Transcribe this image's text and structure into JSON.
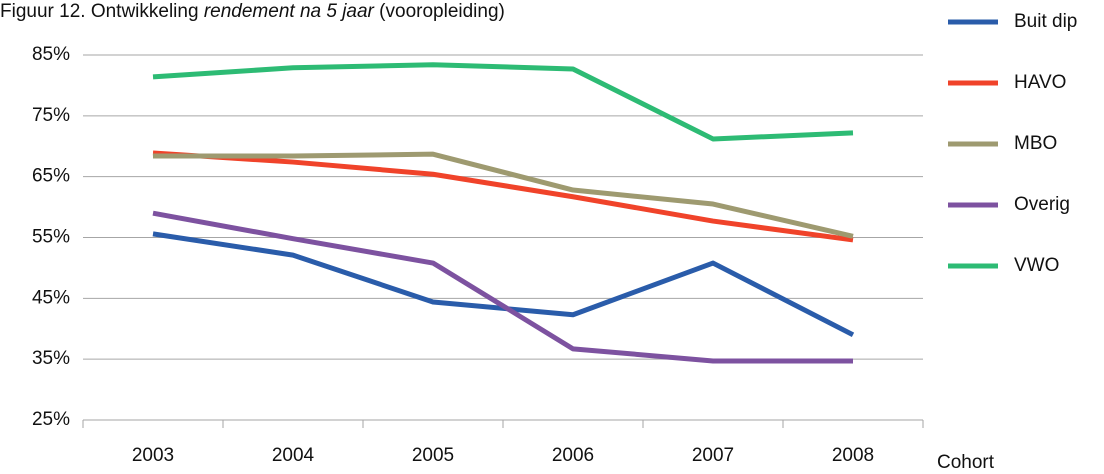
{
  "chart_data": {
    "type": "line",
    "title": [
      "Figuur 12. Ontwikkeling ",
      "rendement na 5 jaar",
      " (vooropleiding)"
    ],
    "x_label": "Cohort",
    "categories": [
      "2003",
      "2004",
      "2005",
      "2006",
      "2007",
      "2008"
    ],
    "series": [
      {
        "name": "Buit dip",
        "color": "#2a5caa",
        "values": [
          55.6,
          52.1,
          44.4,
          42.3,
          50.8,
          39
        ]
      },
      {
        "name": "HAVO",
        "color": "#f0432a",
        "values": [
          68.9,
          67.4,
          65.4,
          61.7,
          57.7,
          54.6
        ]
      },
      {
        "name": "MBO",
        "color": "#9e9a70",
        "values": [
          68.4,
          68.4,
          68.7,
          62.8,
          60.5,
          55.2
        ]
      },
      {
        "name": "Overig",
        "color": "#7d52a0",
        "values": [
          59,
          54.8,
          50.8,
          36.7,
          34.7,
          34.7
        ]
      },
      {
        "name": "VWO",
        "color": "#2dbb74",
        "values": [
          81.4,
          82.9,
          83.4,
          82.7,
          71.2,
          72.2
        ]
      }
    ],
    "ylim": [
      25,
      85
    ],
    "yticks": [
      {
        "value": 25,
        "label": "25%"
      },
      {
        "value": 35,
        "label": "35%"
      },
      {
        "value": 45,
        "label": "45%"
      },
      {
        "value": 55,
        "label": "55%"
      },
      {
        "value": 65,
        "label": "65%"
      },
      {
        "value": 75,
        "label": "75%"
      },
      {
        "value": 85,
        "label": "85%"
      }
    ],
    "grid": true,
    "legend": "right"
  }
}
